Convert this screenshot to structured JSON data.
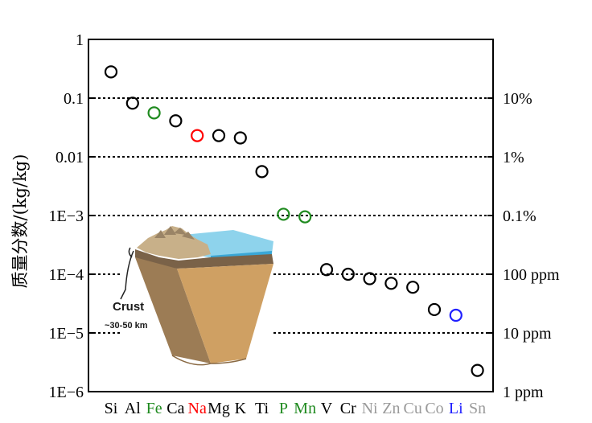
{
  "chart_data": {
    "type": "scatter",
    "title": "",
    "ylabel": "质量分数/(kg/kg)",
    "y_scale": "log",
    "ylim": [
      1e-06,
      1
    ],
    "y_ticks_left": [
      {
        "value": 1,
        "label": "1"
      },
      {
        "value": 0.1,
        "label": "0.1"
      },
      {
        "value": 0.01,
        "label": "0.01"
      },
      {
        "value": 0.001,
        "label": "1E−3"
      },
      {
        "value": 0.0001,
        "label": "1E−4"
      },
      {
        "value": 1e-05,
        "label": "1E−5"
      },
      {
        "value": 1e-06,
        "label": "1E−6"
      }
    ],
    "y_ticks_right": [
      {
        "value": 0.1,
        "label": "10%"
      },
      {
        "value": 0.01,
        "label": "1%"
      },
      {
        "value": 0.001,
        "label": "0.1%"
      },
      {
        "value": 0.0001,
        "label": "100 ppm"
      },
      {
        "value": 1e-05,
        "label": "10 ppm"
      },
      {
        "value": 1e-06,
        "label": "1 ppm"
      }
    ],
    "gridlines": [
      0.1,
      0.01,
      0.001,
      0.0001,
      1e-05
    ],
    "grid_style": "dotted",
    "x_labels": [
      {
        "text": "Si",
        "color": "#000000"
      },
      {
        "text": "Al",
        "color": "#000000"
      },
      {
        "text": "Fe",
        "color": "#1f8a1f"
      },
      {
        "text": "Ca",
        "color": "#000000"
      },
      {
        "text": "Na",
        "color": "#ff0000"
      },
      {
        "text": "Mg",
        "color": "#000000"
      },
      {
        "text": "K",
        "color": "#000000"
      },
      {
        "text": "Ti",
        "color": "#000000"
      },
      {
        "text": "P",
        "color": "#1f8a1f"
      },
      {
        "text": "Mn",
        "color": "#1f8a1f"
      },
      {
        "text": "V",
        "color": "#000000"
      },
      {
        "text": "Cr",
        "color": "#000000"
      },
      {
        "text": "Ni",
        "color": "#9a9a9a"
      },
      {
        "text": "Zn",
        "color": "#9a9a9a"
      },
      {
        "text": "Cu",
        "color": "#9a9a9a"
      },
      {
        "text": "Co",
        "color": "#9a9a9a"
      },
      {
        "text": "Li",
        "color": "#2020ff"
      },
      {
        "text": "Sn",
        "color": "#9a9a9a"
      }
    ],
    "points": [
      {
        "element": "Si",
        "y": 0.28,
        "color": "#000000"
      },
      {
        "element": "Al",
        "y": 0.082,
        "color": "#000000"
      },
      {
        "element": "Fe",
        "y": 0.056,
        "color": "#1f8a1f"
      },
      {
        "element": "Ca",
        "y": 0.041,
        "color": "#000000"
      },
      {
        "element": "Na",
        "y": 0.023,
        "color": "#ff0000"
      },
      {
        "element": "Mg",
        "y": 0.023,
        "color": "#000000"
      },
      {
        "element": "K",
        "y": 0.021,
        "color": "#000000"
      },
      {
        "element": "Ti",
        "y": 0.0056,
        "color": "#000000"
      },
      {
        "element": "P",
        "y": 0.00105,
        "color": "#1f8a1f"
      },
      {
        "element": "Mn",
        "y": 0.00095,
        "color": "#1f8a1f"
      },
      {
        "element": "V",
        "y": 0.00012,
        "color": "#000000"
      },
      {
        "element": "Cr",
        "y": 0.0001,
        "color": "#000000"
      },
      {
        "element": "Ni",
        "y": 8.4e-05,
        "color": "#000000"
      },
      {
        "element": "Zn",
        "y": 7e-05,
        "color": "#000000"
      },
      {
        "element": "Cu",
        "y": 6e-05,
        "color": "#000000"
      },
      {
        "element": "Co",
        "y": 2.5e-05,
        "color": "#000000"
      },
      {
        "element": "Li",
        "y": 2e-05,
        "color": "#2020ff"
      },
      {
        "element": "Sn",
        "y": 2.3e-06,
        "color": "#000000"
      }
    ],
    "inset": {
      "label": "Crust",
      "sublabel": "~30-50 km"
    }
  }
}
